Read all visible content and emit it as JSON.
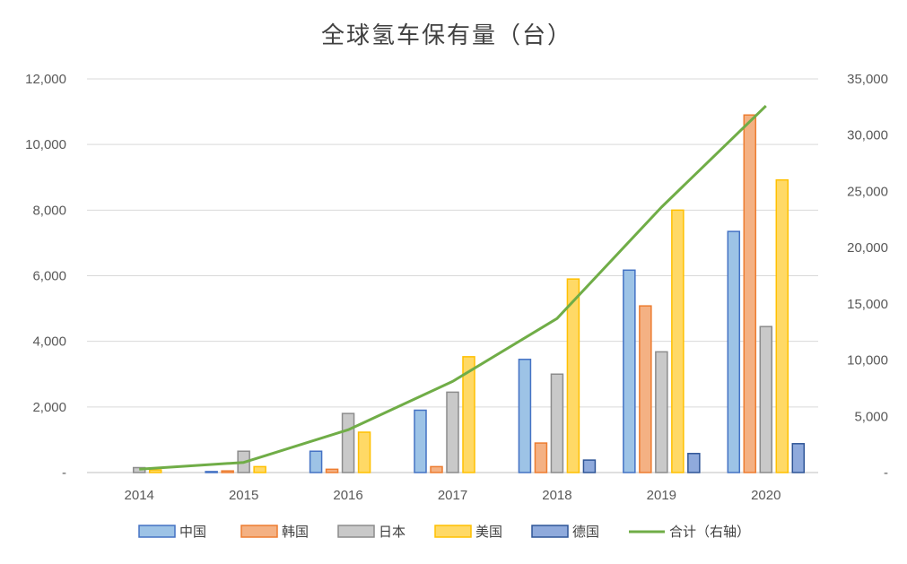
{
  "chart_data": {
    "type": "bar",
    "title": "全球氢车保有量（台）",
    "categories": [
      "2014",
      "2015",
      "2016",
      "2017",
      "2018",
      "2019",
      "2020"
    ],
    "y_left": {
      "range": [
        0,
        12000
      ],
      "ticks": [
        "-",
        "2,000",
        "4,000",
        "6,000",
        "8,000",
        "10,000",
        "12,000"
      ]
    },
    "y_right": {
      "range": [
        0,
        35000
      ],
      "ticks": [
        "-",
        "5,000",
        "10,000",
        "15,000",
        "20,000",
        "25,000",
        "30,000",
        "35,000"
      ]
    },
    "grid": true,
    "legend_position": "bottom",
    "series": [
      {
        "name": "中国",
        "type": "bar",
        "axis": "left",
        "color": "#9DC3E6",
        "border": "#4472C4",
        "values": [
          0,
          30,
          650,
          1900,
          3450,
          6170,
          7350
        ]
      },
      {
        "name": "韩国",
        "type": "bar",
        "axis": "left",
        "color": "#F4B183",
        "border": "#ED7D31",
        "values": [
          0,
          50,
          100,
          180,
          900,
          5080,
          10900
        ]
      },
      {
        "name": "日本",
        "type": "bar",
        "axis": "left",
        "color": "#C9C9C9",
        "border": "#8C8C8C",
        "values": [
          150,
          650,
          1800,
          2450,
          3000,
          3680,
          4450
        ]
      },
      {
        "name": "美国",
        "type": "bar",
        "axis": "left",
        "color": "#FFD966",
        "border": "#FFC000",
        "values": [
          80,
          180,
          1230,
          3530,
          5900,
          8000,
          8920
        ]
      },
      {
        "name": "德国",
        "type": "bar",
        "axis": "left",
        "color": "#8FAADC",
        "border": "#2F5597",
        "values": [
          0,
          0,
          0,
          0,
          380,
          580,
          880
        ]
      },
      {
        "name": "合计（右轴）",
        "type": "line",
        "axis": "right",
        "color": "#70AD47",
        "values": [
          300,
          900,
          3800,
          8100,
          13700,
          23600,
          32600
        ]
      }
    ]
  }
}
